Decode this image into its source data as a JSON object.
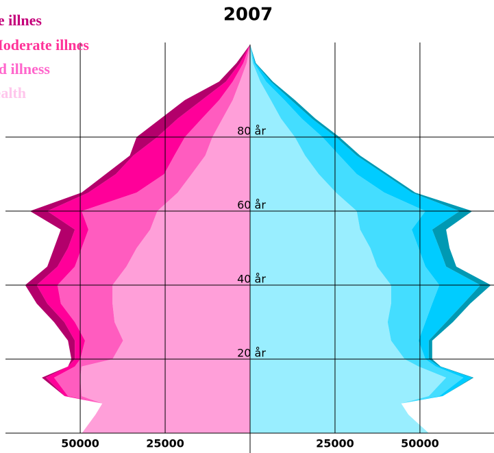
{
  "chart_data": {
    "type": "pyramid",
    "title": "2007",
    "categories": [
      0,
      5,
      8,
      10,
      15,
      18,
      20,
      25,
      30,
      35,
      40,
      45,
      50,
      55,
      60,
      65,
      70,
      75,
      80,
      85,
      90,
      95,
      100,
      105
    ],
    "ylim": [
      0,
      105
    ],
    "yticks": [
      {
        "value": 20,
        "label": "20 år"
      },
      {
        "value": 40,
        "label": "40 år"
      },
      {
        "value": 60,
        "label": "60 år"
      },
      {
        "value": 80,
        "label": "80 år"
      }
    ],
    "xlim": [
      0,
      72000
    ],
    "xticks": [
      25000,
      50000
    ],
    "grid": true,
    "left": {
      "series": [
        {
          "name": "Good health",
          "color": "#ff9fd9",
          "legend_color": "#ffc6ec",
          "values": [
            49500,
            45500,
            43500,
            49600,
            50000,
            49600,
            40500,
            37400,
            39900,
            40500,
            40500,
            36400,
            33400,
            29400,
            27300,
            21300,
            17200,
            13200,
            11100,
            8100,
            5100,
            3000,
            1000,
            0
          ]
        },
        {
          "name": "Mild illness",
          "color": "#ff5cbf",
          "legend_color": "#ff66cc",
          "values": [
            0,
            0,
            0,
            4000,
            7700,
            2000,
            9500,
            11200,
            11700,
            15200,
            16200,
            15200,
            16200,
            18200,
            22300,
            12100,
            8100,
            9100,
            8100,
            6100,
            4000,
            2100,
            1000,
            0
          ]
        },
        {
          "name": "Moderate illnes",
          "color": "#ff0099",
          "legend_color": "#ff3399",
          "values": [
            0,
            0,
            0,
            1000,
            2400,
            2000,
            1600,
            3000,
            3100,
            4000,
            6100,
            5100,
            4000,
            4000,
            10100,
            14200,
            14200,
            12100,
            8100,
            7100,
            5100,
            2000,
            1000,
            0
          ]
        },
        {
          "name": "Severe illnes",
          "color": "#b3006b",
          "legend_color": "#c4007a",
          "values": [
            0,
            0,
            0,
            0,
            1200,
            0,
            1000,
            2000,
            3000,
            3100,
            3400,
            3000,
            4100,
            4100,
            5100,
            2000,
            3000,
            1000,
            6100,
            5000,
            5000,
            2000,
            1000,
            0
          ]
        }
      ]
    },
    "right": {
      "series": [
        {
          "color": "#99eeff",
          "values": [
            52600,
            46600,
            44500,
            52600,
            57700,
            49600,
            45500,
            41500,
            40500,
            41500,
            41500,
            37400,
            35400,
            32400,
            31400,
            25300,
            20200,
            16200,
            13200,
            9100,
            6100,
            3000,
            800,
            0
          ]
        },
        {
          "color": "#44ddff",
          "values": [
            0,
            0,
            0,
            3100,
            5100,
            5100,
            6100,
            8100,
            11100,
            12100,
            14200,
            14200,
            14200,
            15200,
            20200,
            14200,
            11200,
            10100,
            8100,
            6100,
            4000,
            1700,
            400,
            0
          ]
        },
        {
          "color": "#00ccff",
          "values": [
            0,
            0,
            0,
            1000,
            2600,
            1000,
            1000,
            3000,
            6100,
            9200,
            12100,
            6100,
            6100,
            6000,
            10100,
            8100,
            8100,
            5100,
            4000,
            3000,
            2000,
            1400,
            300,
            0
          ]
        },
        {
          "color": "#0099b3",
          "values": [
            0,
            0,
            0,
            0,
            400,
            400,
            1000,
            1000,
            2000,
            2000,
            3100,
            3000,
            3000,
            4100,
            3700,
            1000,
            1000,
            1000,
            1000,
            1000,
            1100,
            600,
            200,
            0
          ]
        }
      ]
    }
  }
}
